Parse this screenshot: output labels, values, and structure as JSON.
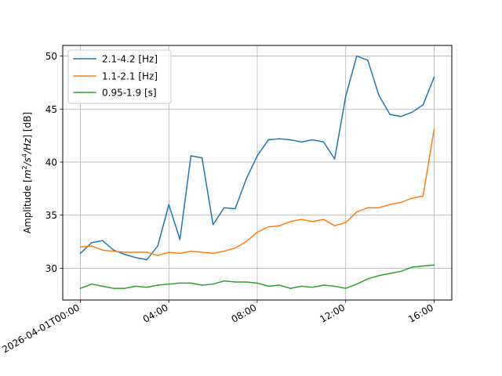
{
  "chart_data": {
    "type": "line",
    "title": "",
    "xlabel": "",
    "ylabel": "Amplitude [m²/s⁴/Hz] [dB]",
    "ylabel_parts": {
      "prefix": "Amplitude [",
      "m": "m",
      "m_sup": "2",
      "mid": "/s",
      "s_sup": "4",
      "tail": "/Hz",
      "suffix": "] [dB]"
    },
    "x_unit": "hours after 2026-04-01T00:00",
    "xlim": [
      -0.8,
      16.8
    ],
    "ylim": [
      27.0,
      51.0
    ],
    "grid": true,
    "legend_position": "top-left",
    "x_ticks": [
      {
        "value": 0,
        "label": "2026-04-01T00:00"
      },
      {
        "value": 4,
        "label": "04:00"
      },
      {
        "value": 8,
        "label": "08:00"
      },
      {
        "value": 12,
        "label": "12:00"
      },
      {
        "value": 16,
        "label": "16:00"
      }
    ],
    "y_ticks": [
      {
        "value": 30,
        "label": "30"
      },
      {
        "value": 35,
        "label": "35"
      },
      {
        "value": 40,
        "label": "40"
      },
      {
        "value": 45,
        "label": "45"
      },
      {
        "value": 50,
        "label": "50"
      }
    ],
    "x": [
      0,
      0.5,
      1,
      1.5,
      2,
      2.5,
      3,
      3.5,
      4,
      4.5,
      5,
      5.5,
      6,
      6.5,
      7,
      7.5,
      8,
      8.5,
      9,
      9.5,
      10,
      10.5,
      11,
      11.5,
      12,
      12.5,
      13,
      13.5,
      14,
      14.5,
      15,
      15.5,
      16
    ],
    "series": [
      {
        "name": "2.1-4.2 [Hz]",
        "color": "#1f77b4",
        "values": [
          31.4,
          32.4,
          32.6,
          31.7,
          31.3,
          31.0,
          30.8,
          32.1,
          36.0,
          32.7,
          40.6,
          40.4,
          34.1,
          35.7,
          35.6,
          38.4,
          40.6,
          42.1,
          42.2,
          42.1,
          41.9,
          42.1,
          41.9,
          40.3,
          46.2,
          50.0,
          49.6,
          46.3,
          44.5,
          44.3,
          44.7,
          45.4,
          48.0
        ]
      },
      {
        "name": "1.1-2.1 [Hz]",
        "color": "#ff7f0e",
        "values": [
          32.0,
          32.1,
          31.7,
          31.6,
          31.5,
          31.5,
          31.5,
          31.2,
          31.5,
          31.4,
          31.6,
          31.5,
          31.4,
          31.6,
          31.9,
          32.5,
          33.4,
          33.9,
          34.0,
          34.4,
          34.6,
          34.4,
          34.6,
          34.0,
          34.3,
          35.3,
          35.7,
          35.7,
          36.0,
          36.2,
          36.6,
          36.8,
          43.1
        ]
      },
      {
        "name": "0.95-1.9 [s]",
        "color": "#2ca02c",
        "values": [
          28.1,
          28.5,
          28.3,
          28.1,
          28.1,
          28.3,
          28.2,
          28.4,
          28.5,
          28.6,
          28.6,
          28.4,
          28.5,
          28.8,
          28.7,
          28.7,
          28.6,
          28.3,
          28.4,
          28.1,
          28.3,
          28.2,
          28.4,
          28.3,
          28.1,
          28.5,
          29.0,
          29.3,
          29.5,
          29.7,
          30.1,
          30.2,
          30.3
        ]
      }
    ]
  }
}
